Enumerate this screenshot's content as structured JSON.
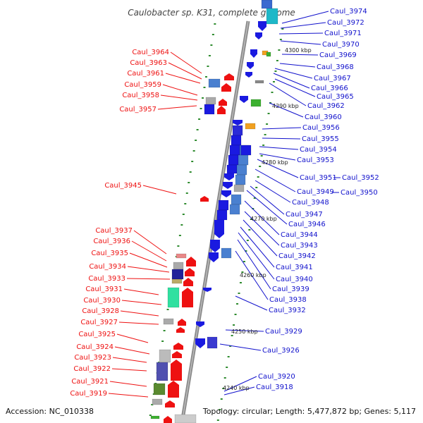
{
  "title": "Caulobacter sp. K31, complete genome",
  "accession": "Accession: NC_010338",
  "topology": "Topology: circular; Length: 5,477,872 bp; Genes: 5,117",
  "colors": {
    "left_labels": "#ee1111",
    "right_labels": "#1111cc",
    "backbone": "#888888",
    "tick": "#2e8b2e"
  },
  "scale_labels": [
    "4300 kbp",
    "4290 kbp",
    "4280 kbp",
    "4270 kbp",
    "4260 kbp",
    "4250 kbp",
    "4240 kbp"
  ],
  "left_labels": [
    "Caul_3964",
    "Caul_3963",
    "Caul_3961",
    "Caul_3959",
    "Caul_3958",
    "Caul_3957",
    "Caul_3945",
    "Caul_3937",
    "Caul_3936",
    "Caul_3935",
    "Caul_3934",
    "Caul_3933",
    "Caul_3931",
    "Caul_3930",
    "Caul_3928",
    "Caul_3927",
    "Caul_3925",
    "Caul_3924",
    "Caul_3923",
    "Caul_3922",
    "Caul_3921",
    "Caul_3919"
  ],
  "right_labels": [
    "Caul_3974",
    "Caul_3972",
    "Caul_3971",
    "Caul_3970",
    "Caul_3969",
    "Caul_3968",
    "Caul_3967",
    "Caul_3966",
    "Caul_3965",
    "Caul_3962",
    "Caul_3960",
    "Caul_3956",
    "Caul_3955",
    "Caul_3954",
    "Caul_3953",
    "Caul_3951",
    "Caul_3952",
    "Caul_3949",
    "Caul_3950",
    "Caul_3948",
    "Caul_3947",
    "Caul_3946",
    "Caul_3944",
    "Caul_3943",
    "Caul_3942",
    "Caul_3941",
    "Caul_3940",
    "Caul_3939",
    "Caul_3938",
    "Caul_3932",
    "Caul_3929",
    "Caul_3926",
    "Caul_3920",
    "Caul_3918"
  ]
}
